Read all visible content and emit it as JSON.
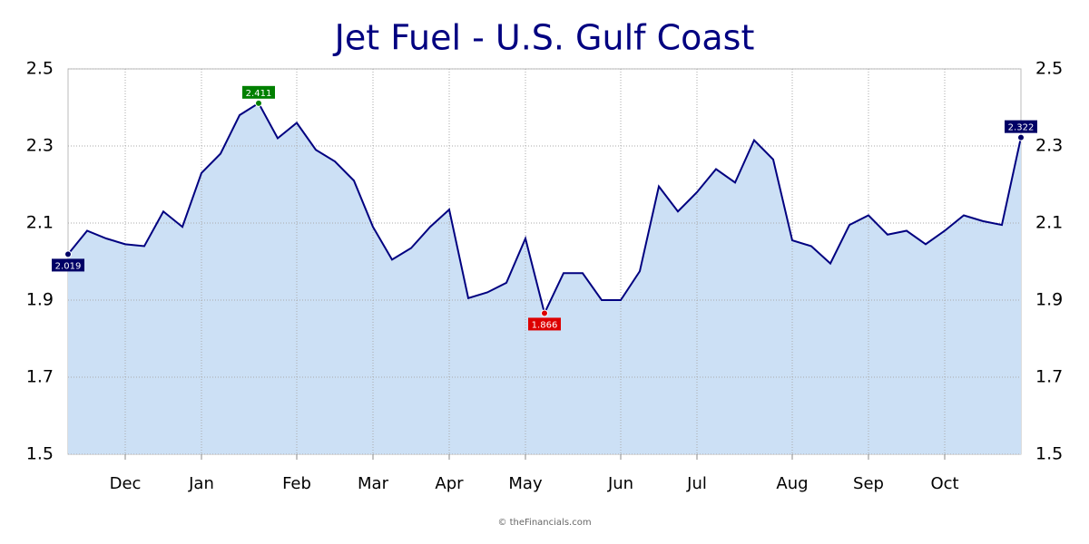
{
  "chart_data": {
    "type": "area",
    "title": "Jet Fuel - U.S. Gulf Coast",
    "credit": "© theFinancials.com",
    "categories": [
      null,
      null,
      null,
      "Dec",
      null,
      null,
      null,
      "Jan",
      null,
      null,
      null,
      null,
      "Feb",
      null,
      null,
      null,
      "Mar",
      null,
      null,
      null,
      "Apr",
      null,
      null,
      null,
      "May",
      null,
      null,
      null,
      null,
      "Jun",
      null,
      null,
      null,
      "Jul",
      null,
      null,
      null,
      null,
      "Aug",
      null,
      null,
      null,
      "Sep",
      null,
      null,
      null,
      "Oct",
      null,
      null,
      null,
      null
    ],
    "values": [
      2.019,
      2.08,
      2.06,
      2.045,
      2.04,
      2.13,
      2.09,
      2.23,
      2.28,
      2.38,
      2.411,
      2.32,
      2.36,
      2.29,
      2.26,
      2.21,
      2.09,
      2.005,
      2.035,
      2.09,
      2.135,
      1.905,
      1.92,
      1.945,
      2.06,
      1.866,
      1.97,
      1.97,
      1.9,
      1.9,
      1.975,
      2.195,
      2.13,
      2.18,
      2.24,
      2.205,
      2.315,
      2.265,
      2.055,
      2.04,
      1.995,
      2.095,
      2.12,
      2.07,
      2.08,
      2.045,
      2.08,
      2.12,
      2.105,
      2.095,
      2.322
    ],
    "color": "#000080",
    "fill": "#cce0f5",
    "label_colors": {
      "first": "#000066",
      "max": "#008000",
      "min": "#dd0000",
      "last": "#000066"
    },
    "ylim": [
      1.5,
      2.5
    ],
    "yticks": [
      1.5,
      1.7,
      1.9,
      2.1,
      2.3,
      2.5
    ],
    "grid": true
  }
}
